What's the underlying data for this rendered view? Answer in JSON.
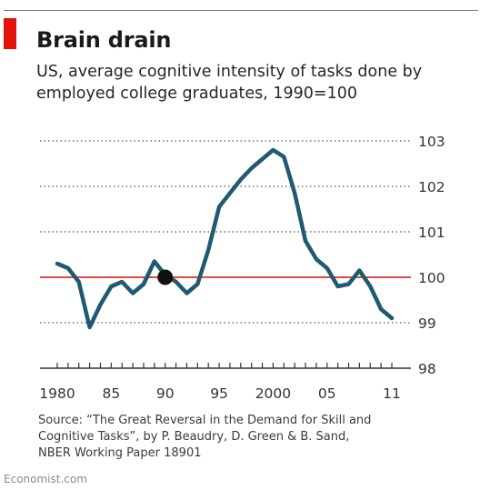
{
  "header": {
    "title": "Brain drain",
    "subtitle": "US, average cognitive intensity of tasks done by employed college graduates, 1990=100"
  },
  "footer": {
    "source_lines": [
      "Source: “The Great Reversal in the Demand for Skill and",
      "Cognitive Tasks”, by P. Beaudry, D. Green & B. Sand,",
      "NBER Working Paper 18901"
    ],
    "logo": "Economist.com"
  },
  "colors": {
    "line": "#1e5b70",
    "reference": "#e3120b",
    "grid": "#555555",
    "axis": "#333333",
    "text": "#333333",
    "marker": "#111111"
  },
  "chart_data": {
    "type": "line",
    "title": "Brain drain",
    "subtitle": "US, average cognitive intensity of tasks done by employed college graduates, 1990=100",
    "xlabel": "",
    "ylabel": "",
    "x_ticks": [
      {
        "value": 1980,
        "label": "1980"
      },
      {
        "value": 1985,
        "label": "85"
      },
      {
        "value": 1990,
        "label": "90"
      },
      {
        "value": 1995,
        "label": "95"
      },
      {
        "value": 2000,
        "label": "2000"
      },
      {
        "value": 2005,
        "label": "05"
      },
      {
        "value": 2011,
        "label": "11"
      }
    ],
    "y_ticks": [
      98,
      99,
      100,
      101,
      102,
      103
    ],
    "ylim": [
      98,
      103
    ],
    "xlim": [
      1980,
      2011
    ],
    "y_axis_side": "right",
    "grid": "dotted horizontal",
    "reference_line": 100,
    "highlight_point": {
      "x": 1990,
      "y": 100
    },
    "series": [
      {
        "x": [
          1980,
          1981,
          1982,
          1983,
          1984,
          1985,
          1986,
          1987,
          1988,
          1989,
          1990,
          1991,
          1992,
          1993,
          1994,
          1995,
          1996,
          1997,
          1998,
          1999,
          2000,
          2001,
          2002,
          2003,
          2004,
          2005,
          2006,
          2007,
          2008,
          2009,
          2010,
          2011
        ],
        "values": [
          100.3,
          100.2,
          99.9,
          98.9,
          99.4,
          99.8,
          99.9,
          99.65,
          99.85,
          100.35,
          100.05,
          99.9,
          99.65,
          99.85,
          100.6,
          101.55,
          101.85,
          102.15,
          102.4,
          102.6,
          102.8,
          102.65,
          101.85,
          100.8,
          100.4,
          100.2,
          99.8,
          99.85,
          100.15,
          99.8,
          99.3,
          99.1
        ]
      }
    ]
  }
}
